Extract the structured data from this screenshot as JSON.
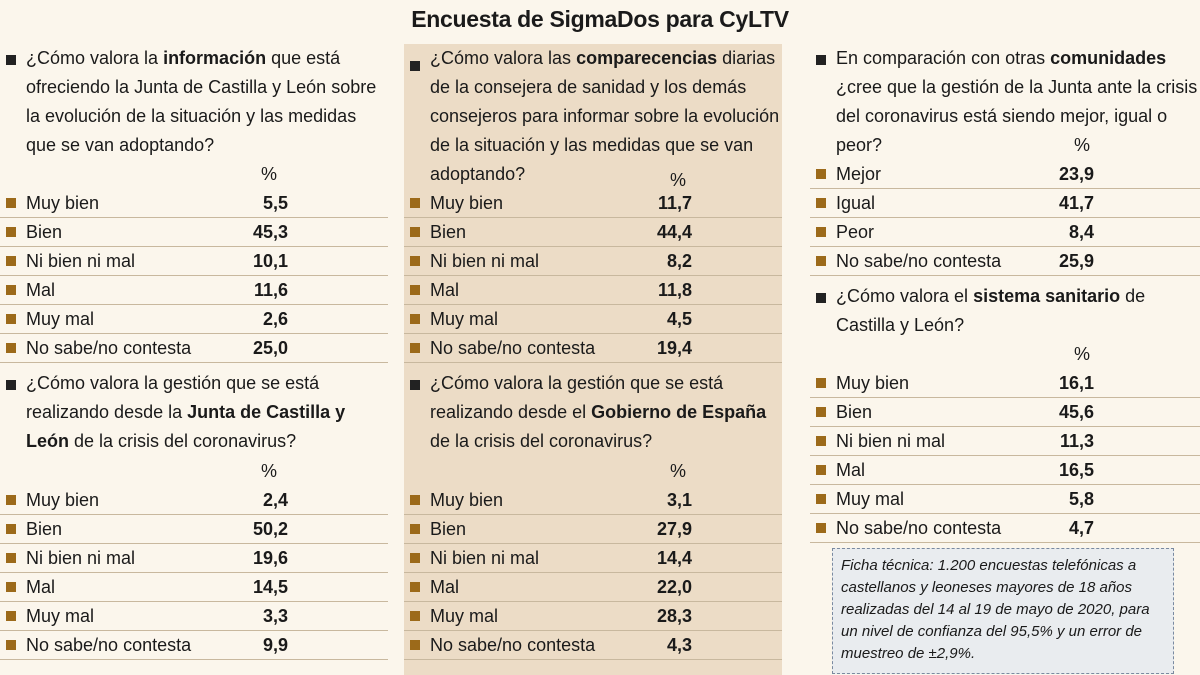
{
  "title": "Encuesta de SigmaDos para CyLTV",
  "pct_label": "%",
  "q1": {
    "t1": "¿Cómo valora la ",
    "b1": "información",
    "t2": " que está ofreciendo la Junta de Castilla y León sobre la evolución de la situación y las medidas que se van adoptando?",
    "rows": [
      {
        "label": "Muy bien",
        "value": "5,5"
      },
      {
        "label": "Bien",
        "value": "45,3"
      },
      {
        "label": "Ni bien ni mal",
        "value": "10,1"
      },
      {
        "label": "Mal",
        "value": "11,6"
      },
      {
        "label": "Muy mal",
        "value": "2,6"
      },
      {
        "label": "No sabe/no contesta",
        "value": "25,0"
      }
    ]
  },
  "q2": {
    "t1": "¿Cómo valora la gestión que se está realizando desde la ",
    "b1": "Junta de Castilla y León",
    "t2": " de la crisis del coronavirus?",
    "rows": [
      {
        "label": "Muy bien",
        "value": "2,4"
      },
      {
        "label": "Bien",
        "value": "50,2"
      },
      {
        "label": "Ni bien ni mal",
        "value": "19,6"
      },
      {
        "label": "Mal",
        "value": "14,5"
      },
      {
        "label": "Muy mal",
        "value": "3,3"
      },
      {
        "label": "No sabe/no contesta",
        "value": "9,9"
      }
    ]
  },
  "q3": {
    "t1": "¿Cómo valora las ",
    "b1": "comparecencias",
    "t2": " diarias de la consejera de sanidad y los demás consejeros para informar sobre la evolución de la situación y las medidas que se van adoptando?",
    "rows": [
      {
        "label": "Muy bien",
        "value": "11,7"
      },
      {
        "label": "Bien",
        "value": "44,4"
      },
      {
        "label": "Ni bien ni mal",
        "value": "8,2"
      },
      {
        "label": "Mal",
        "value": "11,8"
      },
      {
        "label": "Muy mal",
        "value": "4,5"
      },
      {
        "label": "No sabe/no contesta",
        "value": "19,4"
      }
    ]
  },
  "q4": {
    "t1": "¿Cómo valora la gestión que se está realizando desde el ",
    "b1": "Gobierno de España",
    "t2": " de la crisis del coronavirus?",
    "rows": [
      {
        "label": "Muy bien",
        "value": "3,1"
      },
      {
        "label": "Bien",
        "value": "27,9"
      },
      {
        "label": "Ni bien ni mal",
        "value": "14,4"
      },
      {
        "label": "Mal",
        "value": "22,0"
      },
      {
        "label": "Muy mal",
        "value": "28,3"
      },
      {
        "label": "No sabe/no contesta",
        "value": "4,3"
      }
    ]
  },
  "q5": {
    "t1": "En comparación con otras ",
    "b1": "comunidades",
    "t2": " ¿cree que la gestión de la Junta ante la crisis del coronavirus está siendo mejor, igual o peor?",
    "rows": [
      {
        "label": "Mejor",
        "value": "23,9"
      },
      {
        "label": "Igual",
        "value": "41,7"
      },
      {
        "label": "Peor",
        "value": "8,4"
      },
      {
        "label": "No sabe/no contesta",
        "value": "25,9"
      }
    ]
  },
  "q6": {
    "t1": "¿Cómo valora el ",
    "b1": "sistema sanitario",
    "t2": " de Castilla y León?",
    "rows": [
      {
        "label": "Muy bien",
        "value": "16,1"
      },
      {
        "label": "Bien",
        "value": "45,6"
      },
      {
        "label": "Ni bien ni mal",
        "value": "11,3"
      },
      {
        "label": "Mal",
        "value": "16,5"
      },
      {
        "label": "Muy mal",
        "value": "5,8"
      },
      {
        "label": "No sabe/no contesta",
        "value": "4,7"
      }
    ]
  },
  "ficha": "Ficha técnica: 1.200 encuestas telefónicas a castellanos y leoneses mayores de 18 años realizadas del 14 al 19 de mayo de 2020, para un nivel de confianza del 95,5% y un error de muestreo de ±2,9%."
}
